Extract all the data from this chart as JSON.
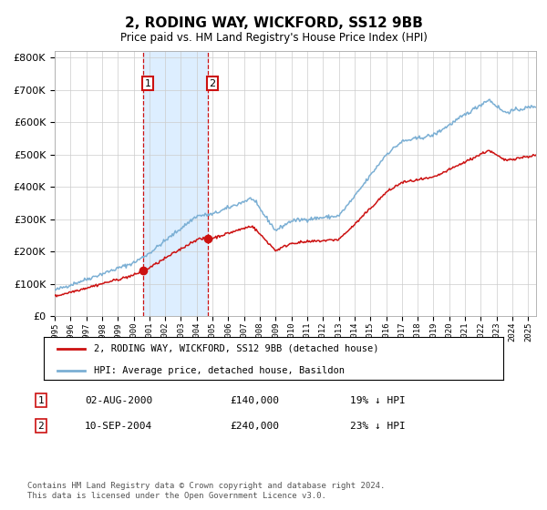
{
  "title": "2, RODING WAY, WICKFORD, SS12 9BB",
  "subtitle": "Price paid vs. HM Land Registry's House Price Index (HPI)",
  "legend_line1": "2, RODING WAY, WICKFORD, SS12 9BB (detached house)",
  "legend_line2": "HPI: Average price, detached house, Basildon",
  "transaction1_date": "02-AUG-2000",
  "transaction1_price": "£140,000",
  "transaction1_hpi": "19% ↓ HPI",
  "transaction1_year": 2000.58,
  "transaction1_value": 140000,
  "transaction2_date": "10-SEP-2004",
  "transaction2_price": "£240,000",
  "transaction2_hpi": "23% ↓ HPI",
  "transaction2_year": 2004.69,
  "transaction2_value": 240000,
  "footer": "Contains HM Land Registry data © Crown copyright and database right 2024.\nThis data is licensed under the Open Government Licence v3.0.",
  "hpi_color": "#7bafd4",
  "price_color": "#cc1111",
  "highlight_color": "#ddeeff",
  "ylim_min": 0,
  "ylim_max": 820000,
  "xmin": 1995,
  "xmax": 2025.5
}
